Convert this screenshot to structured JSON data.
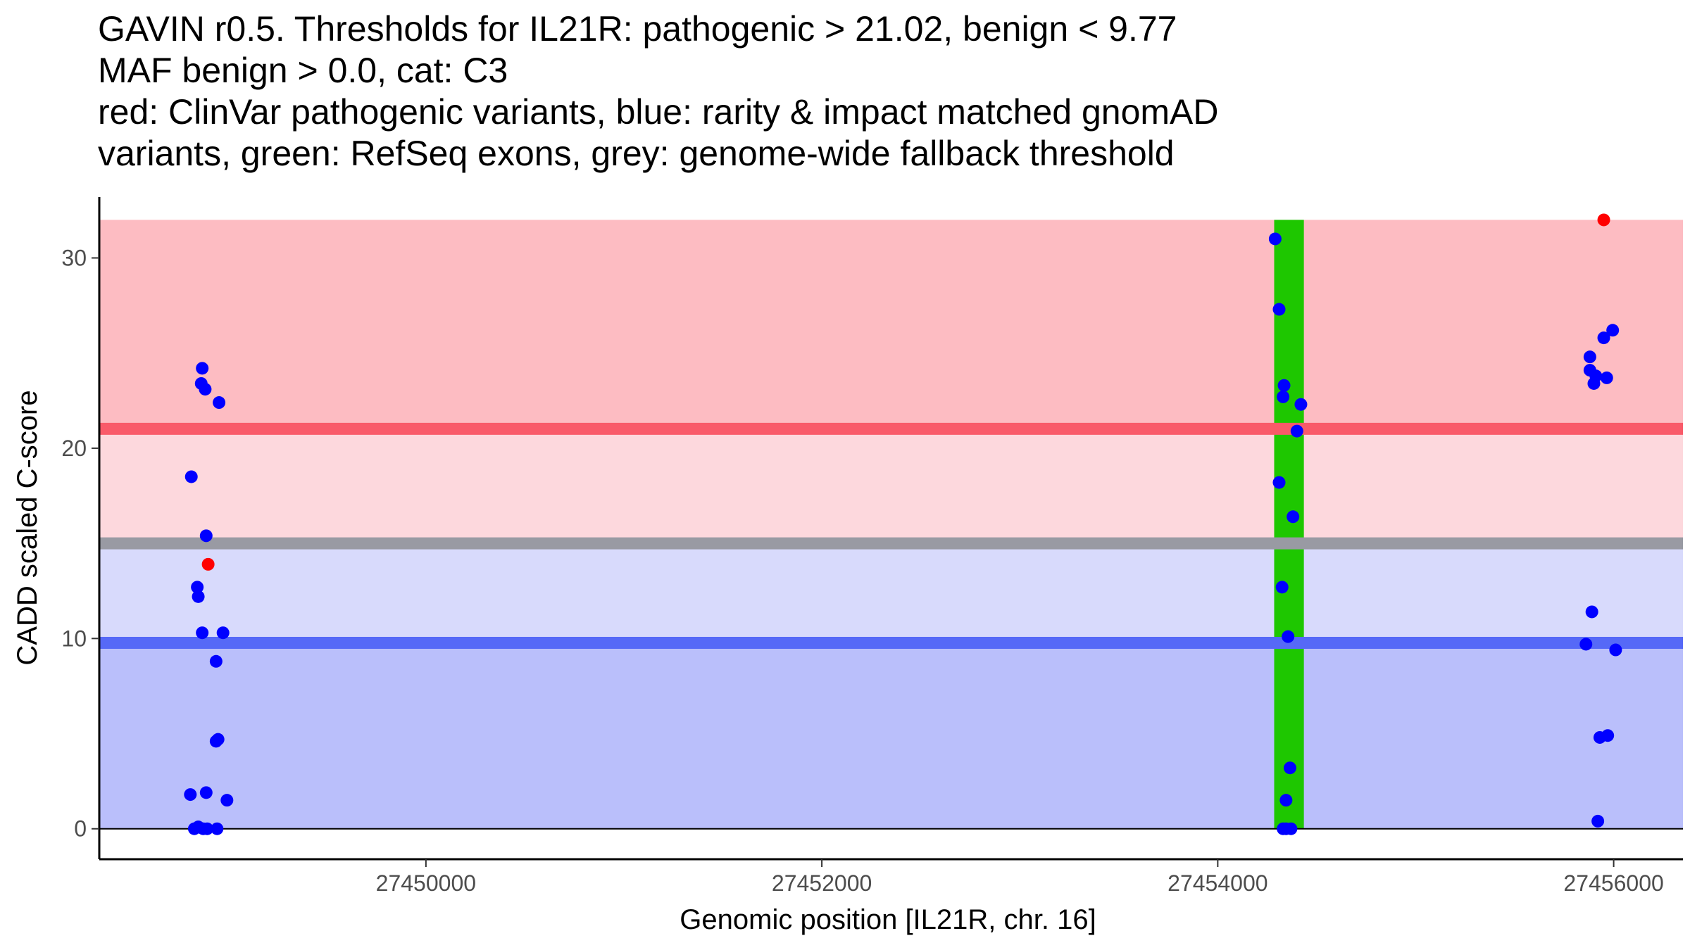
{
  "chart_data": {
    "type": "scatter",
    "title": [
      "GAVIN r0.5. Thresholds for IL21R: pathogenic > 21.02, benign < 9.77",
      "MAF benign > 0.0, cat: C3",
      "red: ClinVar pathogenic variants, blue: rarity & impact matched gnomAD",
      "variants, green: RefSeq exons, grey: genome-wide fallback threshold"
    ],
    "xlabel": "Genomic position [IL21R, chr. 16]",
    "ylabel": "CADD scaled C-score",
    "xlim": [
      27448350,
      27456350
    ],
    "ylim": [
      -1.6,
      33.2
    ],
    "x_ticks": [
      27450000,
      27452000,
      27454000,
      27456000
    ],
    "x_tick_labels": [
      "27450000",
      "27452000",
      "27454000",
      "27456000"
    ],
    "y_ticks": [
      0,
      10,
      20,
      30
    ],
    "y_tick_labels": [
      "0",
      "10",
      "20",
      "30"
    ],
    "thresholds": {
      "pathogenic": 21.02,
      "benign": 9.77,
      "genome_wide_fallback": 15
    },
    "regions": [
      {
        "name": "pathogenic-region",
        "ymin": 21.02,
        "ymax": 32,
        "color": "#fdbcc2"
      },
      {
        "name": "upper-grey-zone",
        "ymin": 15,
        "ymax": 21.02,
        "color": "#fdd8dd"
      },
      {
        "name": "lower-grey-zone",
        "ymin": 9.77,
        "ymax": 15,
        "color": "#d8dafc"
      },
      {
        "name": "benign-region",
        "ymin": 0,
        "ymax": 9.77,
        "color": "#babffb"
      }
    ],
    "lines": [
      {
        "name": "pathogenic-threshold-line",
        "y": 21.02,
        "color": "#f95a69"
      },
      {
        "name": "fallback-threshold-line",
        "y": 15,
        "color": "#999aa3"
      },
      {
        "name": "benign-threshold-line",
        "y": 9.77,
        "color": "#5669f7"
      }
    ],
    "exons": [
      {
        "xmin": 27454285,
        "xmax": 27454435,
        "color": "#1ec700"
      }
    ],
    "series": [
      {
        "name": "ClinVar pathogenic variants",
        "color": "#ff0000",
        "points": [
          {
            "x": 27448900,
            "y": 13.9
          },
          {
            "x": 27455950,
            "y": 32.0
          }
        ]
      },
      {
        "name": "rarity & impact matched gnomAD variants",
        "color": "#0000ff",
        "points": [
          {
            "x": 27448870,
            "y": 24.2
          },
          {
            "x": 27448865,
            "y": 23.4
          },
          {
            "x": 27448885,
            "y": 23.1
          },
          {
            "x": 27448955,
            "y": 22.4
          },
          {
            "x": 27448815,
            "y": 18.5
          },
          {
            "x": 27448890,
            "y": 15.4
          },
          {
            "x": 27448845,
            "y": 12.7
          },
          {
            "x": 27448850,
            "y": 12.2
          },
          {
            "x": 27448870,
            "y": 10.3
          },
          {
            "x": 27448975,
            "y": 10.3
          },
          {
            "x": 27448940,
            "y": 8.8
          },
          {
            "x": 27448940,
            "y": 4.6
          },
          {
            "x": 27448950,
            "y": 4.7
          },
          {
            "x": 27448810,
            "y": 1.8
          },
          {
            "x": 27448890,
            "y": 1.9
          },
          {
            "x": 27448995,
            "y": 1.5
          },
          {
            "x": 27448830,
            "y": 0.0
          },
          {
            "x": 27448850,
            "y": 0.1
          },
          {
            "x": 27448875,
            "y": 0.0
          },
          {
            "x": 27448895,
            "y": 0.0
          },
          {
            "x": 27448945,
            "y": 0.0
          },
          {
            "x": 27454290,
            "y": 31.0
          },
          {
            "x": 27454310,
            "y": 27.3
          },
          {
            "x": 27454335,
            "y": 23.3
          },
          {
            "x": 27454330,
            "y": 22.7
          },
          {
            "x": 27454420,
            "y": 22.3
          },
          {
            "x": 27454400,
            "y": 20.9
          },
          {
            "x": 27454310,
            "y": 18.2
          },
          {
            "x": 27454380,
            "y": 16.4
          },
          {
            "x": 27454325,
            "y": 12.7
          },
          {
            "x": 27454355,
            "y": 10.1
          },
          {
            "x": 27454365,
            "y": 3.2
          },
          {
            "x": 27454345,
            "y": 1.5
          },
          {
            "x": 27454330,
            "y": 0.0
          },
          {
            "x": 27454345,
            "y": 0.0
          },
          {
            "x": 27454370,
            "y": 0.0
          },
          {
            "x": 27455880,
            "y": 24.8
          },
          {
            "x": 27455880,
            "y": 24.1
          },
          {
            "x": 27455900,
            "y": 23.4
          },
          {
            "x": 27455910,
            "y": 23.8
          },
          {
            "x": 27455965,
            "y": 23.7
          },
          {
            "x": 27455950,
            "y": 25.8
          },
          {
            "x": 27455995,
            "y": 26.2
          },
          {
            "x": 27455890,
            "y": 11.4
          },
          {
            "x": 27455860,
            "y": 9.7
          },
          {
            "x": 27456010,
            "y": 9.4
          },
          {
            "x": 27455930,
            "y": 4.8
          },
          {
            "x": 27455970,
            "y": 4.9
          },
          {
            "x": 27455920,
            "y": 0.4
          }
        ]
      }
    ]
  }
}
